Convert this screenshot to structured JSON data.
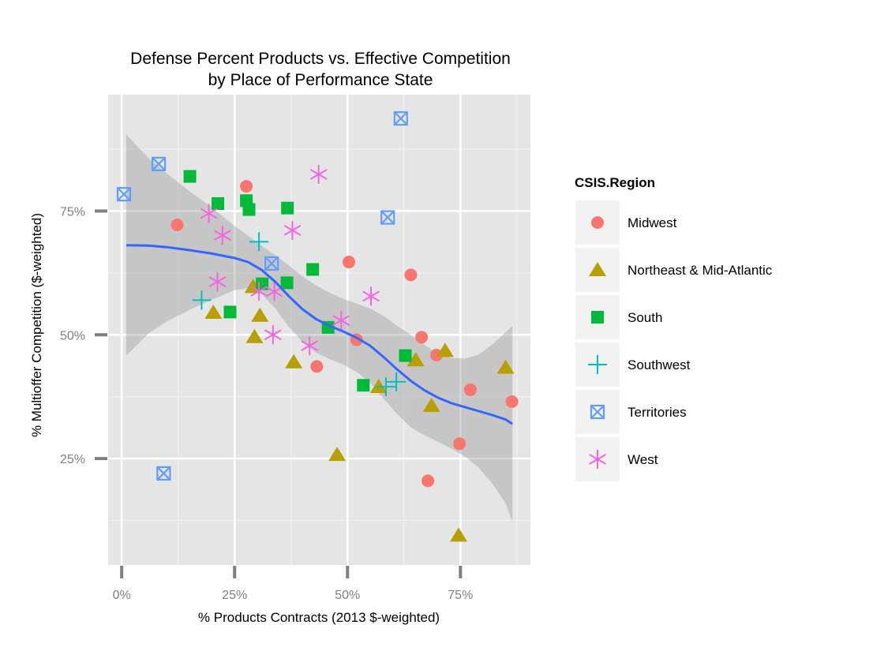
{
  "chart_data": {
    "type": "scatter",
    "title_lines": [
      "Defense Percent Products vs. Effective Competition",
      "by Place of Performance State"
    ],
    "xlabel": "% Products Contracts (2013 $-weighted)",
    "ylabel": "% Multioffer Competition ($-weighted)",
    "xlim": [
      -0.03,
      0.905
    ],
    "ylim": [
      0.035,
      0.985
    ],
    "x_ticks": [
      0,
      0.25,
      0.5,
      0.75
    ],
    "x_tick_labels": [
      "0%",
      "25%",
      "50%",
      "75%"
    ],
    "y_ticks": [
      0.25,
      0.5,
      0.75
    ],
    "y_tick_labels": [
      "25%",
      "50%",
      "75%"
    ],
    "grid": true,
    "legend": {
      "title": "CSIS.Region",
      "placement": "right"
    },
    "series": [
      {
        "name": "Midwest",
        "shape": "circle",
        "color": "#F8766D",
        "points": [
          [
            0.123,
            0.722
          ],
          [
            0.276,
            0.8
          ],
          [
            0.432,
            0.436
          ],
          [
            0.503,
            0.647
          ],
          [
            0.52,
            0.49
          ],
          [
            0.64,
            0.621
          ],
          [
            0.664,
            0.495
          ],
          [
            0.678,
            0.205
          ],
          [
            0.697,
            0.459
          ],
          [
            0.748,
            0.28
          ],
          [
            0.772,
            0.389
          ],
          [
            0.864,
            0.365
          ]
        ]
      },
      {
        "name": "Northeast & Mid-Atlantic",
        "shape": "triangle",
        "color": "#B79F00",
        "points": [
          [
            0.203,
            0.545
          ],
          [
            0.291,
            0.597
          ],
          [
            0.294,
            0.496
          ],
          [
            0.306,
            0.539
          ],
          [
            0.381,
            0.445
          ],
          [
            0.477,
            0.258
          ],
          [
            0.569,
            0.395
          ],
          [
            0.651,
            0.449
          ],
          [
            0.686,
            0.357
          ],
          [
            0.716,
            0.468
          ],
          [
            0.746,
            0.095
          ],
          [
            0.85,
            0.434
          ]
        ]
      },
      {
        "name": "South",
        "shape": "square",
        "color": "#00BA38",
        "points": [
          [
            0.151,
            0.82
          ],
          [
            0.213,
            0.765
          ],
          [
            0.276,
            0.771
          ],
          [
            0.282,
            0.753
          ],
          [
            0.24,
            0.546
          ],
          [
            0.311,
            0.603
          ],
          [
            0.367,
            0.756
          ],
          [
            0.366,
            0.605
          ],
          [
            0.423,
            0.632
          ],
          [
            0.457,
            0.515
          ],
          [
            0.535,
            0.398
          ],
          [
            0.628,
            0.458
          ]
        ]
      },
      {
        "name": "Southwest",
        "shape": "plus",
        "color": "#00BFC4",
        "points": [
          [
            0.177,
            0.57
          ],
          [
            0.304,
            0.688
          ],
          [
            0.585,
            0.395
          ],
          [
            0.608,
            0.405
          ]
        ]
      },
      {
        "name": "Territories",
        "shape": "square-x",
        "color": "#619CFF",
        "points": [
          [
            0.005,
            0.784
          ],
          [
            0.082,
            0.845
          ],
          [
            0.093,
            0.22
          ],
          [
            0.332,
            0.644
          ],
          [
            0.589,
            0.737
          ],
          [
            0.618,
            0.937
          ]
        ]
      },
      {
        "name": "West",
        "shape": "asterisk",
        "color": "#F564E3",
        "points": [
          [
            0.193,
            0.745
          ],
          [
            0.212,
            0.607
          ],
          [
            0.223,
            0.701
          ],
          [
            0.304,
            0.588
          ],
          [
            0.335,
            0.5
          ],
          [
            0.338,
            0.587
          ],
          [
            0.378,
            0.711
          ],
          [
            0.416,
            0.478
          ],
          [
            0.436,
            0.824
          ],
          [
            0.486,
            0.529
          ],
          [
            0.552,
            0.578
          ]
        ]
      }
    ],
    "smooth": {
      "color": "#3366FF",
      "fit": [
        [
          0.01,
          0.681
        ],
        [
          0.06,
          0.68
        ],
        [
          0.1,
          0.677
        ],
        [
          0.15,
          0.671
        ],
        [
          0.2,
          0.664
        ],
        [
          0.25,
          0.655
        ],
        [
          0.28,
          0.647
        ],
        [
          0.31,
          0.631
        ],
        [
          0.34,
          0.607
        ],
        [
          0.37,
          0.578
        ],
        [
          0.4,
          0.552
        ],
        [
          0.43,
          0.532
        ],
        [
          0.46,
          0.518
        ],
        [
          0.49,
          0.507
        ],
        [
          0.52,
          0.494
        ],
        [
          0.55,
          0.478
        ],
        [
          0.58,
          0.455
        ],
        [
          0.61,
          0.43
        ],
        [
          0.64,
          0.407
        ],
        [
          0.67,
          0.388
        ],
        [
          0.7,
          0.373
        ],
        [
          0.73,
          0.362
        ],
        [
          0.76,
          0.354
        ],
        [
          0.79,
          0.346
        ],
        [
          0.82,
          0.338
        ],
        [
          0.85,
          0.329
        ],
        [
          0.865,
          0.32
        ]
      ],
      "upper": [
        [
          0.01,
          0.905
        ],
        [
          0.06,
          0.856
        ],
        [
          0.1,
          0.826
        ],
        [
          0.15,
          0.79
        ],
        [
          0.2,
          0.757
        ],
        [
          0.25,
          0.72
        ],
        [
          0.28,
          0.7
        ],
        [
          0.31,
          0.68
        ],
        [
          0.34,
          0.661
        ],
        [
          0.37,
          0.64
        ],
        [
          0.4,
          0.618
        ],
        [
          0.43,
          0.6
        ],
        [
          0.46,
          0.585
        ],
        [
          0.49,
          0.573
        ],
        [
          0.52,
          0.563
        ],
        [
          0.55,
          0.553
        ],
        [
          0.58,
          0.538
        ],
        [
          0.61,
          0.518
        ],
        [
          0.64,
          0.5
        ],
        [
          0.67,
          0.48
        ],
        [
          0.7,
          0.462
        ],
        [
          0.73,
          0.453
        ],
        [
          0.76,
          0.452
        ],
        [
          0.79,
          0.46
        ],
        [
          0.82,
          0.48
        ],
        [
          0.85,
          0.505
        ],
        [
          0.865,
          0.518
        ]
      ],
      "lower": [
        [
          0.865,
          0.122
        ],
        [
          0.85,
          0.16
        ],
        [
          0.82,
          0.2
        ],
        [
          0.79,
          0.232
        ],
        [
          0.76,
          0.254
        ],
        [
          0.73,
          0.27
        ],
        [
          0.7,
          0.284
        ],
        [
          0.67,
          0.297
        ],
        [
          0.64,
          0.313
        ],
        [
          0.61,
          0.34
        ],
        [
          0.58,
          0.371
        ],
        [
          0.55,
          0.403
        ],
        [
          0.52,
          0.425
        ],
        [
          0.49,
          0.44
        ],
        [
          0.46,
          0.451
        ],
        [
          0.43,
          0.464
        ],
        [
          0.4,
          0.486
        ],
        [
          0.37,
          0.516
        ],
        [
          0.34,
          0.553
        ],
        [
          0.31,
          0.582
        ],
        [
          0.28,
          0.594
        ],
        [
          0.25,
          0.59
        ],
        [
          0.2,
          0.571
        ],
        [
          0.15,
          0.55
        ],
        [
          0.1,
          0.527
        ],
        [
          0.06,
          0.503
        ],
        [
          0.01,
          0.458
        ]
      ]
    }
  }
}
